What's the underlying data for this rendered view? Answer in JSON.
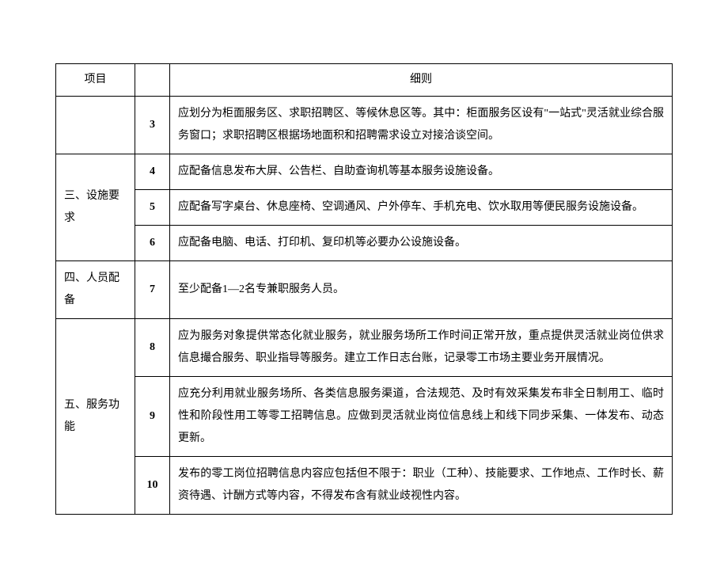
{
  "header": {
    "project": "项目",
    "detail": "细则"
  },
  "rows": [
    {
      "project": "",
      "num": "3",
      "detail": "应划分为柜面服务区、求职招聘区、等候休息区等。其中：柜面服务区设有\"一站式\"灵活就业综合服务窗口；求职招聘区根据场地面积和招聘需求设立对接洽谈空间。"
    },
    {
      "project": "三、设施要求",
      "num": "4",
      "detail": "应配备信息发布大屏、公告栏、自助查询机等基本服务设施设备。"
    },
    {
      "project": "",
      "num": "5",
      "detail": "应配备写字桌台、休息座椅、空调通风、户外停车、手机充电、饮水取用等便民服务设施设备。"
    },
    {
      "project": "",
      "num": "6",
      "detail": "应配备电脑、电话、打印机、复印机等必要办公设施设备。"
    },
    {
      "project": "四、人员配备",
      "num": "7",
      "detail": "至少配备1—2名专兼职服务人员。"
    },
    {
      "project": "五、服务功能",
      "num": "8",
      "detail": "应为服务对象提供常态化就业服务，就业服务场所工作时间正常开放，重点提供灵活就业岗位供求信息撮合服务、职业指导等服务。建立工作日志台账，记录零工市场主要业务开展情况。"
    },
    {
      "project": "",
      "num": "9",
      "detail": "应充分利用就业服务场所、各类信息服务渠道，合法规范、及时有效采集发布非全日制用工、临时性和阶段性用工等零工招聘信息。应做到灵活就业岗位信息线上和线下同步采集、一体发布、动态更新。"
    },
    {
      "project": "",
      "num": "10",
      "detail": "发布的零工岗位招聘信息内容应包括但不限于：职业（工种）、技能要求、工作地点、工作时长、薪资待遇、计酬方式等内容，不得发布含有就业歧视性内容。"
    }
  ]
}
